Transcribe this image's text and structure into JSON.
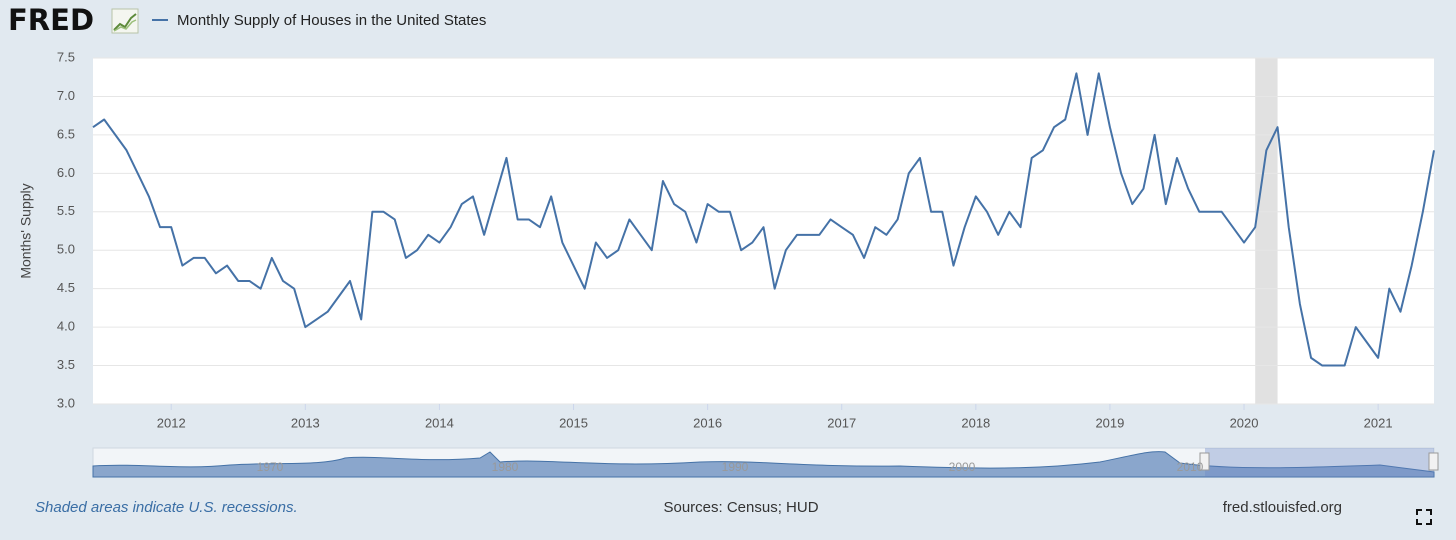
{
  "brand": "FRED",
  "chart_data": {
    "type": "line",
    "y_label": "Months' Supply",
    "x": [
      "2011-06",
      "2011-07",
      "2011-08",
      "2011-09",
      "2011-10",
      "2011-11",
      "2011-12",
      "2012-01",
      "2012-02",
      "2012-03",
      "2012-04",
      "2012-05",
      "2012-06",
      "2012-07",
      "2012-08",
      "2012-09",
      "2012-10",
      "2012-11",
      "2012-12",
      "2013-01",
      "2013-02",
      "2013-03",
      "2013-04",
      "2013-05",
      "2013-06",
      "2013-07",
      "2013-08",
      "2013-09",
      "2013-10",
      "2013-11",
      "2013-12",
      "2014-01",
      "2014-02",
      "2014-03",
      "2014-04",
      "2014-05",
      "2014-06",
      "2014-07",
      "2014-08",
      "2014-09",
      "2014-10",
      "2014-11",
      "2014-12",
      "2015-01",
      "2015-02",
      "2015-03",
      "2015-04",
      "2015-05",
      "2015-06",
      "2015-07",
      "2015-08",
      "2015-09",
      "2015-10",
      "2015-11",
      "2015-12",
      "2016-01",
      "2016-02",
      "2016-03",
      "2016-04",
      "2016-05",
      "2016-06",
      "2016-07",
      "2016-08",
      "2016-09",
      "2016-10",
      "2016-11",
      "2016-12",
      "2017-01",
      "2017-02",
      "2017-03",
      "2017-04",
      "2017-05",
      "2017-06",
      "2017-07",
      "2017-08",
      "2017-09",
      "2017-10",
      "2017-11",
      "2017-12",
      "2018-01",
      "2018-02",
      "2018-03",
      "2018-04",
      "2018-05",
      "2018-06",
      "2018-07",
      "2018-08",
      "2018-09",
      "2018-10",
      "2018-11",
      "2018-12",
      "2019-01",
      "2019-02",
      "2019-03",
      "2019-04",
      "2019-05",
      "2019-06",
      "2019-07",
      "2019-08",
      "2019-09",
      "2019-10",
      "2019-11",
      "2019-12",
      "2020-01",
      "2020-02",
      "2020-03",
      "2020-04",
      "2020-05",
      "2020-06",
      "2020-07",
      "2020-08",
      "2020-09",
      "2020-10",
      "2020-11",
      "2020-12",
      "2021-01",
      "2021-02",
      "2021-03",
      "2021-04",
      "2021-05",
      "2021-06"
    ],
    "series": [
      {
        "name": "Monthly Supply of Houses in the United States",
        "color": "#4572a7",
        "values": [
          6.6,
          6.7,
          6.5,
          6.3,
          6.0,
          5.7,
          5.3,
          5.3,
          4.8,
          4.9,
          4.9,
          4.7,
          4.8,
          4.6,
          4.6,
          4.5,
          4.9,
          4.6,
          4.5,
          4.0,
          4.1,
          4.2,
          4.4,
          4.6,
          4.1,
          5.5,
          5.5,
          5.4,
          4.9,
          5.0,
          5.2,
          5.1,
          5.3,
          5.6,
          5.7,
          5.2,
          5.7,
          6.2,
          5.4,
          5.4,
          5.3,
          5.7,
          5.1,
          4.8,
          4.5,
          5.1,
          4.9,
          5.0,
          5.4,
          5.2,
          5.0,
          5.9,
          5.6,
          5.5,
          5.1,
          5.6,
          5.5,
          5.5,
          5.0,
          5.1,
          5.3,
          4.5,
          5.0,
          5.2,
          5.2,
          5.2,
          5.4,
          5.3,
          5.2,
          4.9,
          5.3,
          5.2,
          5.4,
          6.0,
          6.2,
          5.5,
          5.5,
          4.8,
          5.3,
          5.7,
          5.5,
          5.2,
          5.5,
          5.3,
          6.2,
          6.3,
          6.6,
          6.7,
          7.3,
          6.5,
          7.3,
          6.6,
          6.0,
          5.6,
          5.8,
          6.5,
          5.6,
          6.2,
          5.8,
          5.5,
          5.5,
          5.5,
          5.3,
          5.1,
          5.3,
          6.3,
          6.6,
          5.3,
          4.3,
          3.6,
          3.5,
          3.5,
          3.5,
          4.0,
          3.8,
          3.6,
          4.5,
          4.2,
          4.8,
          5.5,
          6.3
        ]
      }
    ],
    "xlim": [
      "2011-06",
      "2021-06"
    ],
    "xticks": [
      2012,
      2013,
      2014,
      2015,
      2016,
      2017,
      2018,
      2019,
      2020,
      2021
    ],
    "ylim": [
      3,
      7.5
    ],
    "yticks": [
      {
        "value": 3,
        "label": "3.0"
      },
      3.5,
      {
        "value": 4,
        "label": "4.0"
      },
      4.5,
      {
        "value": 5,
        "label": "5.0"
      },
      5.5,
      {
        "value": 6,
        "label": "6.0"
      },
      6.5,
      {
        "value": 7,
        "label": "7.0"
      },
      7.5
    ],
    "grid": true,
    "recessions": [
      [
        "2020-02",
        "2020-04"
      ]
    ],
    "recession_color": "#e1e1e1"
  },
  "navigator_labels": [
    "1970",
    "1980",
    "1990",
    "2000",
    "2010"
  ],
  "footer": {
    "note": "Shaded areas indicate U.S. recessions.",
    "sources": "Sources: Census; HUD",
    "site": "fred.stlouisfed.org"
  }
}
